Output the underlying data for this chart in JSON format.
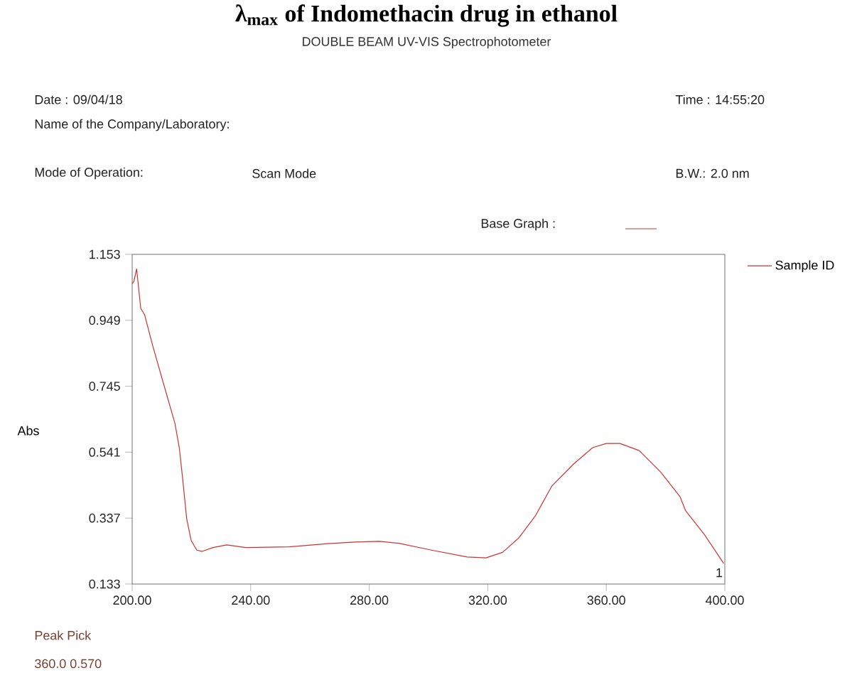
{
  "chart_data": {
    "type": "line",
    "title": "λ$_{max}$ of Indomethacin drug in ethanol",
    "xlabel": null,
    "ylabel": "Abs",
    "annotations": [
      "DOUBLE BEAM UV-VIS Spectrophotometer",
      "Date : 09/04/18",
      "Name of the Company/Laboratory:",
      "Time : 14:55:20",
      "Mode of Operation:",
      "Scan Mode",
      "B.W.:  2.0 nm",
      "Base Graph :",
      "1",
      "Peak Pick",
      "360.0   0.570"
    ],
    "xlim": [
      200,
      400
    ],
    "ylim": [
      0.133,
      1.153
    ],
    "xticks": [
      {
        "value": 200,
        "label": "200.00"
      },
      {
        "value": 240,
        "label": "240.00"
      },
      {
        "value": 280,
        "label": "280.00"
      },
      {
        "value": 320,
        "label": "320.00"
      },
      {
        "value": 360,
        "label": "360.00"
      },
      {
        "value": 400,
        "label": "400.00"
      }
    ],
    "yticks": [
      0.133,
      0.337,
      0.541,
      0.745,
      0.949,
      1.153
    ],
    "legend": "top right",
    "marker": "none",
    "line_style": "solid",
    "series": [
      {
        "name": "Sample ID",
        "color": "#cc3333",
        "x": [
          200,
          200.6,
          201.5,
          202.9,
          204.2,
          207,
          210.7,
          214.4,
          215.9,
          217.1,
          218.4,
          219.9,
          221.8,
          223.6,
          227.3,
          231.9,
          238.3,
          253.1,
          266,
          275.2,
          283.5,
          290,
          301,
          313,
          319.4,
          325,
          330.5,
          336,
          341.6,
          348.9,
          355.4,
          360,
          364.6,
          371.1,
          378.4,
          384.9,
          386.7,
          393.2,
          399.6
        ],
        "values": [
          1.062,
          1.07,
          1.108,
          0.986,
          0.966,
          0.868,
          0.749,
          0.631,
          0.555,
          0.453,
          0.335,
          0.268,
          0.238,
          0.234,
          0.246,
          0.254,
          0.246,
          0.248,
          0.258,
          0.263,
          0.265,
          0.259,
          0.238,
          0.217,
          0.214,
          0.231,
          0.276,
          0.343,
          0.436,
          0.504,
          0.555,
          0.568,
          0.568,
          0.546,
          0.479,
          0.403,
          0.361,
          0.285,
          0.197
        ]
      }
    ]
  }
}
